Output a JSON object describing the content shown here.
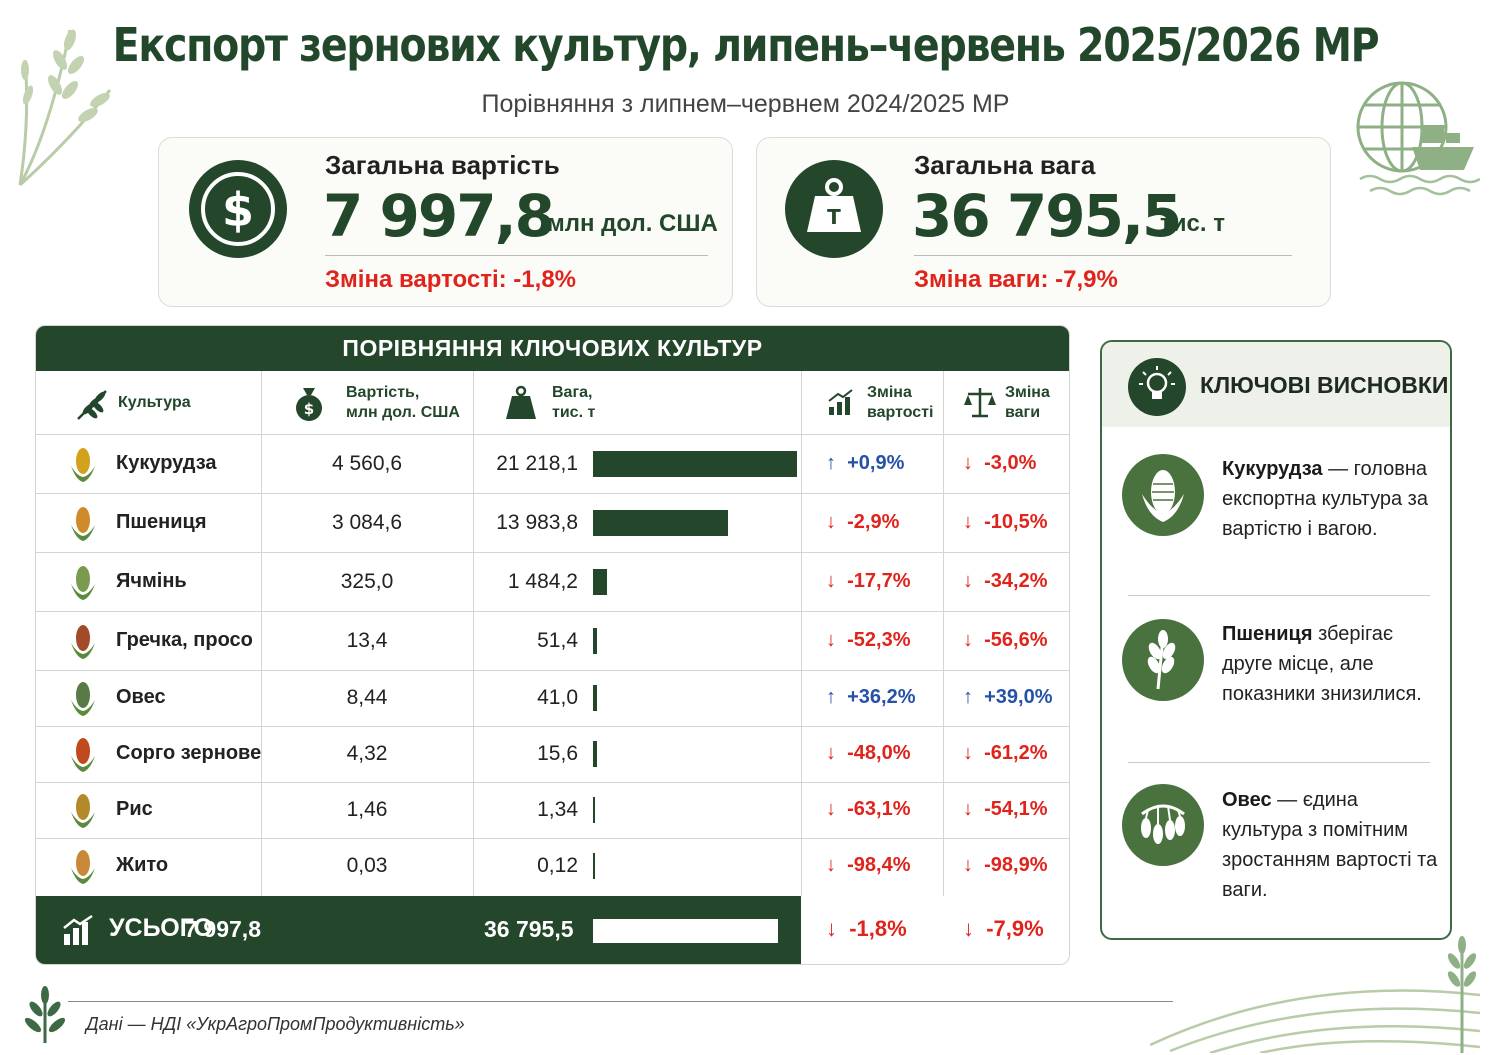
{
  "header": {
    "title": "Експорт зернових культур, липень–червень 2025/2026 МР",
    "subtitle": "Порівняння з липнем–червнем 2024/2025 МР"
  },
  "cards": {
    "value": {
      "label": "Загальна вартість",
      "amount": "7 997,8",
      "unit": "млн дол. США",
      "change": "Зміна вартості: -1,8%",
      "icon": "dollar-icon"
    },
    "weight": {
      "label": "Загальна вага",
      "amount": "36 795,5",
      "unit": "тис. т",
      "change": "Зміна ваги: -7,9%",
      "icon": "weight-icon"
    }
  },
  "table": {
    "title": "ПОРІВНЯННЯ КЛЮЧОВИХ КУЛЬТУР",
    "columns": {
      "crop": "Культура",
      "value_1": "Вартість,",
      "value_2": "млн дол. США",
      "weight_1": "Вага,",
      "weight_2": "тис. т",
      "vchange_1": "Зміна",
      "vchange_2": "вартості",
      "wchange_1": "Зміна",
      "wchange_2": "ваги"
    },
    "rows": [
      {
        "crop": "Кукурудза",
        "value": "4 560,6",
        "weight": "21 218,1",
        "vchange": "+0,9%",
        "wchange": "-3,0%",
        "vdir": "up",
        "wdir": "down"
      },
      {
        "crop": "Пшениця",
        "value": "3 084,6",
        "weight": "13 983,8",
        "vchange": "-2,9%",
        "wchange": "-10,5%",
        "vdir": "down",
        "wdir": "down"
      },
      {
        "crop": "Ячмінь",
        "value": "325,0",
        "weight": "1 484,2",
        "vchange": "-17,7%",
        "wchange": "-34,2%",
        "vdir": "down",
        "wdir": "down"
      },
      {
        "crop": "Гречка, просо",
        "value": "13,4",
        "weight": "51,4",
        "vchange": "-52,3%",
        "wchange": "-56,6%",
        "vdir": "down",
        "wdir": "down"
      },
      {
        "crop": "Овес",
        "value": "8,44",
        "weight": "41,0",
        "vchange": "+36,2%",
        "wchange": "+39,0%",
        "vdir": "up",
        "wdir": "up"
      },
      {
        "crop": "Сорго зернове",
        "value": "4,32",
        "weight": "15,6",
        "vchange": "-48,0%",
        "wchange": "-61,2%",
        "vdir": "down",
        "wdir": "down"
      },
      {
        "crop": "Рис",
        "value": "1,46",
        "weight": "1,34",
        "vchange": "-63,1%",
        "wchange": "-54,1%",
        "vdir": "down",
        "wdir": "down"
      },
      {
        "crop": "Жито",
        "value": "0,03",
        "weight": "0,12",
        "vchange": "-98,4%",
        "wchange": "-98,9%",
        "vdir": "down",
        "wdir": "down"
      }
    ],
    "total": {
      "label": "УСЬОГО",
      "value": "7 997,8",
      "weight": "36 795,5",
      "vchange": "-1,8%",
      "wchange": "-7,9%"
    }
  },
  "chart_data": {
    "type": "bar",
    "categories": [
      "Кукурудза",
      "Пшениця",
      "Ячмінь",
      "Гречка, просо",
      "Овес",
      "Сорго зернове",
      "Рис",
      "Жито"
    ],
    "values": [
      21218.1,
      13983.8,
      1484.2,
      51.4,
      41.0,
      15.6,
      1.34,
      0.12
    ],
    "total": 36795.5,
    "ylabel": "Вага, тис. т",
    "xlim": [
      0,
      22000
    ]
  },
  "sidebar": {
    "title": "КЛЮЧОВІ ВИСНОВКИ",
    "items": [
      {
        "bold": "Кукурудза",
        "text": " — головна експортна культура за вартістю і вагою."
      },
      {
        "bold": "Пшениця",
        "text": " зберігає друге місце, але показники знизилися."
      },
      {
        "bold": "Овес",
        "text": " — єдина культура з помітним зростанням вартості та ваги."
      }
    ]
  },
  "footer": {
    "source": "Дані — НДІ «УкрАгроПромПродуктивність»"
  },
  "colors": {
    "dark_green": "#24472b",
    "red": "#e0231b",
    "blue": "#2552a8"
  }
}
